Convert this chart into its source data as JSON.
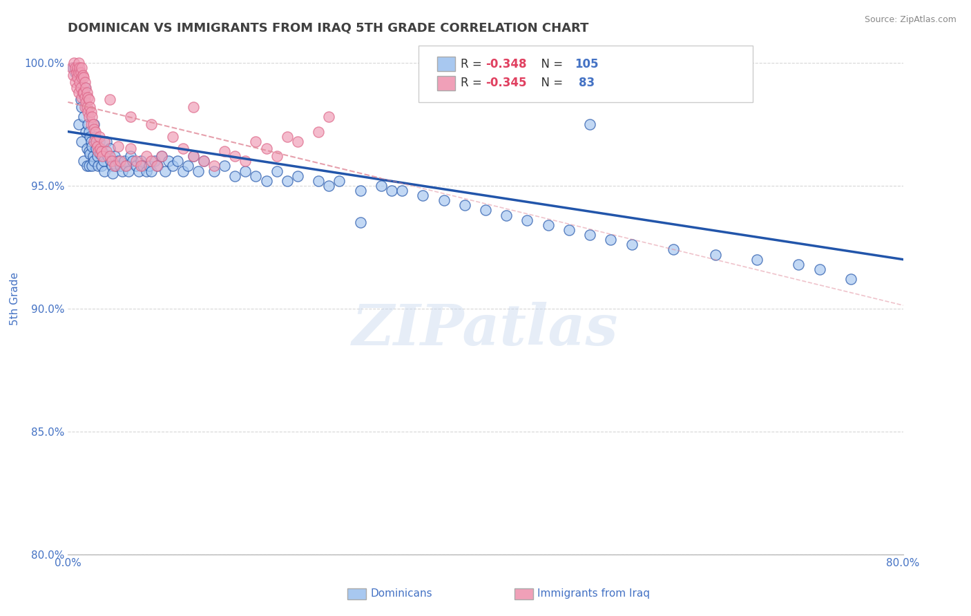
{
  "title": "DOMINICAN VS IMMIGRANTS FROM IRAQ 5TH GRADE CORRELATION CHART",
  "source": "Source: ZipAtlas.com",
  "ylabel": "5th Grade",
  "xlim": [
    0.0,
    0.8
  ],
  "ylim": [
    0.8,
    1.008
  ],
  "yticks": [
    0.8,
    0.85,
    0.9,
    0.95,
    1.0
  ],
  "ytick_labels": [
    "80.0%",
    "85.0%",
    "90.0%",
    "95.0%",
    "100.0%"
  ],
  "xticks": [
    0.0,
    0.1,
    0.2,
    0.3,
    0.4,
    0.5,
    0.6,
    0.7,
    0.8
  ],
  "xtick_labels": [
    "0.0%",
    "",
    "",
    "",
    "",
    "",
    "",
    "",
    "80.0%"
  ],
  "blue_R": -0.348,
  "blue_N": 105,
  "pink_R": -0.345,
  "pink_N": 83,
  "blue_color": "#A8C8F0",
  "pink_color": "#F0A0B8",
  "blue_line_color": "#2255AA",
  "pink_line_color": "#DD6688",
  "pink_dash_color": "#E08898",
  "grid_color": "#CCCCCC",
  "title_color": "#404040",
  "tick_label_color": "#4472C4",
  "watermark": "ZIPatlas",
  "blue_trend_x0": 0.0,
  "blue_trend_y0": 0.972,
  "blue_trend_x1": 0.8,
  "blue_trend_y1": 0.92,
  "pink_trend_x0": 0.0,
  "pink_trend_y0": 0.984,
  "pink_trend_x1": 0.3,
  "pink_trend_y1": 0.953,
  "blue_scatter_x": [
    0.005,
    0.007,
    0.01,
    0.01,
    0.012,
    0.013,
    0.013,
    0.015,
    0.015,
    0.016,
    0.017,
    0.018,
    0.018,
    0.019,
    0.02,
    0.02,
    0.02,
    0.021,
    0.021,
    0.022,
    0.023,
    0.023,
    0.024,
    0.025,
    0.025,
    0.026,
    0.027,
    0.028,
    0.029,
    0.03,
    0.031,
    0.032,
    0.033,
    0.034,
    0.035,
    0.037,
    0.038,
    0.04,
    0.041,
    0.042,
    0.043,
    0.045,
    0.046,
    0.048,
    0.05,
    0.052,
    0.054,
    0.056,
    0.058,
    0.06,
    0.062,
    0.065,
    0.068,
    0.07,
    0.072,
    0.075,
    0.078,
    0.08,
    0.083,
    0.086,
    0.09,
    0.093,
    0.096,
    0.1,
    0.105,
    0.11,
    0.115,
    0.12,
    0.125,
    0.13,
    0.14,
    0.15,
    0.16,
    0.17,
    0.18,
    0.19,
    0.2,
    0.21,
    0.22,
    0.24,
    0.25,
    0.26,
    0.28,
    0.3,
    0.31,
    0.32,
    0.34,
    0.36,
    0.38,
    0.4,
    0.42,
    0.44,
    0.46,
    0.48,
    0.5,
    0.52,
    0.54,
    0.58,
    0.62,
    0.66,
    0.7,
    0.72,
    0.75,
    0.5,
    0.28
  ],
  "blue_scatter_y": [
    0.998,
    0.996,
    0.994,
    0.975,
    0.985,
    0.982,
    0.968,
    0.978,
    0.96,
    0.99,
    0.972,
    0.965,
    0.958,
    0.975,
    0.972,
    0.964,
    0.958,
    0.97,
    0.963,
    0.968,
    0.966,
    0.958,
    0.962,
    0.975,
    0.96,
    0.97,
    0.965,
    0.962,
    0.958,
    0.968,
    0.963,
    0.958,
    0.964,
    0.96,
    0.956,
    0.968,
    0.962,
    0.965,
    0.96,
    0.958,
    0.955,
    0.962,
    0.958,
    0.96,
    0.958,
    0.956,
    0.96,
    0.958,
    0.956,
    0.962,
    0.96,
    0.958,
    0.956,
    0.96,
    0.958,
    0.956,
    0.958,
    0.956,
    0.96,
    0.958,
    0.962,
    0.956,
    0.96,
    0.958,
    0.96,
    0.956,
    0.958,
    0.962,
    0.956,
    0.96,
    0.956,
    0.958,
    0.954,
    0.956,
    0.954,
    0.952,
    0.956,
    0.952,
    0.954,
    0.952,
    0.95,
    0.952,
    0.948,
    0.95,
    0.948,
    0.948,
    0.946,
    0.944,
    0.942,
    0.94,
    0.938,
    0.936,
    0.934,
    0.932,
    0.93,
    0.928,
    0.926,
    0.924,
    0.922,
    0.92,
    0.918,
    0.916,
    0.912,
    0.975,
    0.935
  ],
  "pink_scatter_x": [
    0.004,
    0.005,
    0.006,
    0.007,
    0.007,
    0.008,
    0.008,
    0.009,
    0.009,
    0.01,
    0.01,
    0.01,
    0.011,
    0.011,
    0.012,
    0.012,
    0.013,
    0.013,
    0.013,
    0.014,
    0.014,
    0.015,
    0.015,
    0.016,
    0.016,
    0.016,
    0.017,
    0.017,
    0.018,
    0.018,
    0.019,
    0.019,
    0.02,
    0.02,
    0.021,
    0.022,
    0.022,
    0.023,
    0.024,
    0.025,
    0.025,
    0.026,
    0.027,
    0.028,
    0.029,
    0.03,
    0.031,
    0.032,
    0.033,
    0.035,
    0.037,
    0.04,
    0.042,
    0.045,
    0.048,
    0.05,
    0.055,
    0.06,
    0.065,
    0.07,
    0.075,
    0.08,
    0.085,
    0.09,
    0.1,
    0.11,
    0.12,
    0.13,
    0.14,
    0.15,
    0.16,
    0.17,
    0.18,
    0.19,
    0.2,
    0.21,
    0.22,
    0.24,
    0.25,
    0.12,
    0.08,
    0.06,
    0.04
  ],
  "pink_scatter_y": [
    0.998,
    0.995,
    1.0,
    0.998,
    0.992,
    0.996,
    0.99,
    0.998,
    0.994,
    1.0,
    0.996,
    0.988,
    0.998,
    0.992,
    0.996,
    0.99,
    0.998,
    0.994,
    0.986,
    0.995,
    0.988,
    0.994,
    0.988,
    0.992,
    0.986,
    0.982,
    0.99,
    0.984,
    0.988,
    0.982,
    0.986,
    0.98,
    0.985,
    0.978,
    0.982,
    0.98,
    0.975,
    0.978,
    0.975,
    0.973,
    0.968,
    0.972,
    0.968,
    0.966,
    0.964,
    0.97,
    0.965,
    0.964,
    0.962,
    0.968,
    0.964,
    0.962,
    0.96,
    0.958,
    0.966,
    0.96,
    0.958,
    0.965,
    0.96,
    0.958,
    0.962,
    0.96,
    0.958,
    0.962,
    0.97,
    0.965,
    0.962,
    0.96,
    0.958,
    0.964,
    0.962,
    0.96,
    0.968,
    0.965,
    0.962,
    0.97,
    0.968,
    0.972,
    0.978,
    0.982,
    0.975,
    0.978,
    0.985
  ]
}
